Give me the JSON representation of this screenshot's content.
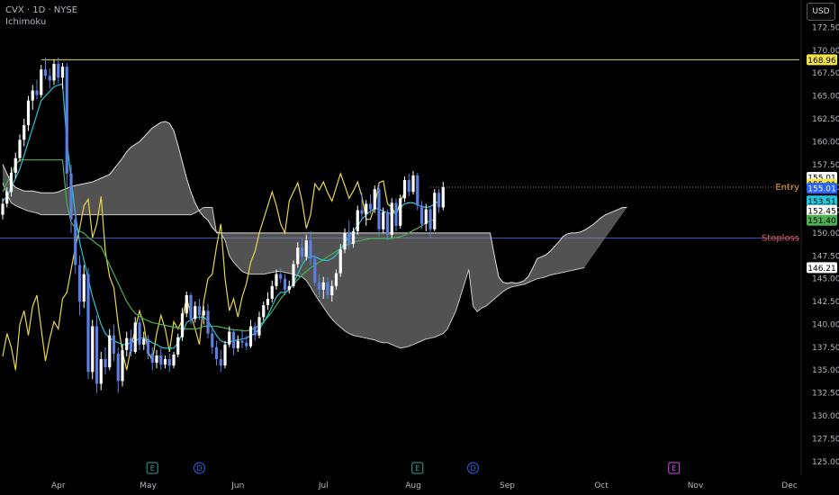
{
  "header": {
    "symbol": "CVX · 1D · NYSE",
    "indicator": "Ichimoku"
  },
  "currency_button": "USD",
  "chart_data": {
    "type": "candlestick",
    "price_axis": {
      "ticks": [
        172.5,
        170,
        167.5,
        165,
        162.5,
        160,
        157.5,
        155,
        152.5,
        150,
        147.5,
        145,
        142.5,
        140,
        137.5,
        135,
        132.5,
        130,
        127.5,
        125
      ],
      "range": [
        123.5,
        175.5
      ]
    },
    "time_axis": {
      "labels": [
        "Apr",
        "May",
        "Jun",
        "Jul",
        "Aug",
        "Sep",
        "Oct",
        "Nov",
        "Dec"
      ],
      "label_index": [
        13,
        34,
        55,
        75,
        96,
        118,
        140,
        162,
        184
      ],
      "total_slots": 197
    },
    "event_markers": [
      {
        "label": "E",
        "index": 35,
        "color": "#26a69a"
      },
      {
        "label": "D",
        "index": 46,
        "color": "#2962ff"
      },
      {
        "label": "E",
        "index": 97,
        "color": "#26a69a"
      },
      {
        "label": "D",
        "index": 110,
        "color": "#2962ff"
      },
      {
        "label": "E",
        "index": 157,
        "color": "#e040fb"
      }
    ],
    "levels": [
      {
        "name": "Entry",
        "price": 155.01,
        "color": "#f0a030",
        "style": "dotted"
      },
      {
        "name": "Stoploss",
        "price": 149.45,
        "color": "#ef5350",
        "style": "solid"
      },
      {
        "name": "",
        "price": 168.96,
        "color": "#e6d84a",
        "style": "solid"
      }
    ],
    "price_badges": [
      {
        "text": "168.96",
        "price": 168.96,
        "bg": "#f2e64a",
        "fg": "#000000"
      },
      {
        "text": "155.01",
        "price": 156.1,
        "bg": "#ffffff",
        "fg": "#000000"
      },
      {
        "text": "155.01",
        "price": 155.35,
        "bg": "#f2e64a",
        "fg": "#000000"
      },
      {
        "text": "155.01",
        "price": 154.9,
        "bg": "#2962ff",
        "fg": "#ffffff"
      },
      {
        "text": "153.51",
        "price": 153.51,
        "bg": "#26c6da",
        "fg": "#000000"
      },
      {
        "text": "152.45",
        "price": 152.45,
        "bg": "#ffffff",
        "fg": "#000000"
      },
      {
        "text": "151.40",
        "price": 151.4,
        "bg": "#4caf50",
        "fg": "#000000"
      },
      {
        "text": "146.21",
        "price": 146.21,
        "bg": "#ffffff",
        "fg": "#000000"
      }
    ],
    "candles": [
      [
        152,
        153.8,
        151.5,
        153.2
      ],
      [
        153.2,
        155,
        152.8,
        154.5
      ],
      [
        154.5,
        157.2,
        154,
        156.6
      ],
      [
        156.6,
        158.8,
        156,
        158.2
      ],
      [
        158.2,
        160.8,
        157.8,
        160.2
      ],
      [
        160.2,
        162.5,
        159.5,
        161.8
      ],
      [
        161.8,
        165,
        161.2,
        164.5
      ],
      [
        164.5,
        166.2,
        163.5,
        165.6
      ],
      [
        165.6,
        166.8,
        164.6,
        165.1
      ],
      [
        165.1,
        168.4,
        164.8,
        167.9
      ],
      [
        167.9,
        169.2,
        166.8,
        167.2
      ],
      [
        167.2,
        168,
        165.8,
        166.7
      ],
      [
        166.7,
        169,
        166.2,
        168.5
      ],
      [
        168.5,
        169.2,
        166.4,
        167
      ],
      [
        167,
        168.6,
        165.8,
        168.2
      ],
      [
        168.2,
        168.6,
        155,
        156.5
      ],
      [
        156.5,
        157.5,
        150,
        151.5
      ],
      [
        151.5,
        152.5,
        145.5,
        146.5
      ],
      [
        146.5,
        147.5,
        141,
        142.5
      ],
      [
        142.5,
        146.5,
        141.8,
        145.5
      ],
      [
        145.5,
        146.2,
        134,
        134.8
      ],
      [
        134.8,
        140.5,
        134,
        139.8
      ],
      [
        139.8,
        141,
        132.5,
        133.5
      ],
      [
        133.5,
        137,
        132.8,
        136.2
      ],
      [
        136.2,
        137.5,
        134.5,
        135.3
      ],
      [
        135.3,
        139.5,
        135,
        138.8
      ],
      [
        138.8,
        140,
        136,
        136.8
      ],
      [
        136.8,
        137.5,
        132.5,
        133.8
      ],
      [
        133.8,
        137.8,
        133.2,
        137.2
      ],
      [
        137.2,
        139.2,
        136.5,
        138.5
      ],
      [
        138.5,
        139.4,
        136.5,
        137
      ],
      [
        137,
        140.8,
        136.8,
        140.2
      ],
      [
        140.2,
        140.8,
        137.2,
        137.8
      ],
      [
        137.8,
        139.2,
        137.2,
        138.4
      ],
      [
        138.4,
        138.8,
        136.2,
        136.8
      ],
      [
        136.8,
        137.5,
        135,
        135.8
      ],
      [
        135.8,
        137.2,
        135.2,
        136.6
      ],
      [
        136.6,
        137.4,
        135,
        135.6
      ],
      [
        135.6,
        136.6,
        135.2,
        136.2
      ],
      [
        136.2,
        136.8,
        134.8,
        135.5
      ],
      [
        135.5,
        137,
        135.2,
        136.7
      ],
      [
        136.7,
        139,
        136.4,
        138.6
      ],
      [
        138.6,
        141.8,
        138.2,
        141.2
      ],
      [
        141.2,
        143.6,
        140.8,
        143.2
      ],
      [
        143.2,
        143.5,
        140,
        140.6
      ],
      [
        140.6,
        142.5,
        140.2,
        142
      ],
      [
        142,
        142.8,
        140.5,
        141
      ],
      [
        141,
        142,
        140,
        141.5
      ],
      [
        141.5,
        142.2,
        138.5,
        139
      ],
      [
        139,
        139.8,
        136.8,
        137.5
      ],
      [
        137.5,
        138.2,
        135.5,
        136.2
      ],
      [
        136.2,
        137.2,
        134.8,
        135.5
      ],
      [
        135.5,
        138.2,
        135.2,
        137.8
      ],
      [
        137.8,
        139.8,
        137.5,
        139.2
      ],
      [
        139.2,
        139.5,
        136.6,
        137.4
      ],
      [
        137.4,
        138.8,
        137,
        138.2
      ],
      [
        138.2,
        139.5,
        137.4,
        138
      ],
      [
        138,
        138.8,
        137.2,
        137.6
      ],
      [
        137.6,
        140.5,
        137.4,
        139.8
      ],
      [
        139.8,
        140.2,
        138.2,
        138.8
      ],
      [
        138.8,
        141.4,
        138.5,
        140.8
      ],
      [
        140.8,
        142.5,
        140.4,
        142.1
      ],
      [
        142.1,
        143.5,
        141.6,
        142.8
      ],
      [
        142.8,
        144.8,
        142.4,
        144.2
      ],
      [
        144.2,
        146,
        143.8,
        145.5
      ],
      [
        145.5,
        146.2,
        144.5,
        145
      ],
      [
        145,
        145.5,
        143.2,
        143.8
      ],
      [
        143.8,
        144.8,
        143.4,
        144.2
      ],
      [
        144.2,
        147,
        144,
        146.6
      ],
      [
        146.6,
        149,
        146.2,
        148.4
      ],
      [
        148.4,
        149.5,
        146.8,
        147.4
      ],
      [
        147.4,
        149.8,
        147,
        149.2
      ],
      [
        149.2,
        150.2,
        146.5,
        147.2
      ],
      [
        147.2,
        147.6,
        144.2,
        144.6
      ],
      [
        144.6,
        145.5,
        143,
        143.8
      ],
      [
        143.8,
        145.2,
        142.8,
        144.6
      ],
      [
        144.6,
        145.2,
        142.8,
        143.2
      ],
      [
        143.2,
        144.8,
        142.5,
        144.2
      ],
      [
        144.2,
        146,
        143.8,
        145.6
      ],
      [
        145.6,
        148.8,
        145.2,
        148.2
      ],
      [
        148.2,
        150.5,
        147.8,
        150
      ],
      [
        150,
        151.4,
        148.2,
        148.8
      ],
      [
        148.8,
        150.6,
        148.4,
        150.2
      ],
      [
        150.2,
        153,
        149.8,
        152.5
      ],
      [
        152.5,
        154.4,
        151.5,
        152.1
      ],
      [
        152.1,
        153.6,
        150.8,
        153.2
      ],
      [
        153.2,
        154.2,
        152.1,
        152.6
      ],
      [
        152.6,
        155.2,
        152.2,
        154.8
      ],
      [
        154.8,
        155.4,
        149.6,
        150.4
      ],
      [
        150.4,
        152.8,
        150,
        152.3
      ],
      [
        152.3,
        152.6,
        149.2,
        149.8
      ],
      [
        149.8,
        153.8,
        149.5,
        153.3
      ],
      [
        153.3,
        153.8,
        150.2,
        150.8
      ],
      [
        150.8,
        154.2,
        150.5,
        153.8
      ],
      [
        153.8,
        156.2,
        153.4,
        155.8
      ],
      [
        155.8,
        156.5,
        154,
        154.5
      ],
      [
        154.5,
        156.8,
        154.2,
        156.3
      ],
      [
        156.3,
        156.6,
        152.5,
        153
      ],
      [
        153,
        153.5,
        150.5,
        151
      ],
      [
        151,
        153.2,
        150.2,
        152.6
      ],
      [
        152.6,
        153,
        149.5,
        150.4
      ],
      [
        150.4,
        154.8,
        150.2,
        154.4
      ],
      [
        154.4,
        154.8,
        152.2,
        152.8
      ],
      [
        152.8,
        155.6,
        152.5,
        155
      ]
    ],
    "tenkan": [
      153.5,
      154,
      155,
      156,
      157,
      158.5,
      160,
      161.5,
      163,
      164.5,
      165,
      165.5,
      166,
      166.2,
      166.3,
      160,
      156,
      152,
      149,
      147,
      145,
      143,
      141.5,
      140,
      139,
      138.5,
      138.2,
      138,
      137.8,
      137.8,
      138,
      138.2,
      138.5,
      138.5,
      138.3,
      138,
      137.8,
      137.5,
      137.4,
      137.4,
      137.4,
      138,
      139,
      140.2,
      140.5,
      140.8,
      140.8,
      140.8,
      140.4,
      139.6,
      138.8,
      138.2,
      138,
      138.1,
      138.2,
      138.3,
      138.4,
      138.5,
      138.8,
      139,
      139.5,
      140.2,
      141,
      142,
      143,
      143.5,
      143.5,
      143.8,
      144.5,
      145.5,
      146.5,
      147.2,
      147.5,
      147.4,
      147.2,
      147,
      147,
      147.2,
      147.6,
      148.2,
      149,
      149.6,
      150.2,
      150.8,
      151.5,
      152,
      152.4,
      152.7,
      152.6,
      152.4,
      152.2,
      152.1,
      152.3,
      152.8,
      153.2,
      153.3,
      153.3,
      153.1,
      152.9,
      152.8,
      152.9,
      153.2,
      153.5
    ],
    "kijun": [
      154.5,
      155.5,
      156.5,
      157.5,
      158,
      158,
      158,
      158,
      158,
      158,
      158,
      158,
      158,
      158,
      158,
      153.2,
      151.2,
      150.5,
      150.2,
      150,
      149.5,
      149.2,
      148.8,
      148.5,
      147.5,
      146.5,
      145.5,
      144.5,
      143.5,
      142.5,
      141.8,
      141.2,
      140.9,
      140.6,
      140.4,
      140.2,
      140.1,
      140,
      139.9,
      139.8,
      139.7,
      139.6,
      139.5,
      139.5,
      139.5,
      139.5,
      139.6,
      139.8,
      139.8,
      139.8,
      139.8,
      139.7,
      139.6,
      139.5,
      139.4,
      139.4,
      139.3,
      139.3,
      139.4,
      139.6,
      139.9,
      140.3,
      140.8,
      141.4,
      142.1,
      142.8,
      143.4,
      143.9,
      144.4,
      144.9,
      145.4,
      145.8,
      146.2,
      146.5,
      146.8,
      147.1,
      147.4,
      147.7,
      148,
      148.3,
      148.6,
      148.8,
      149,
      149.1,
      149.2,
      149.3,
      149.4,
      149.4,
      149.4,
      149.4,
      149.4,
      149.4,
      149.5,
      149.6,
      149.8,
      150,
      150.3,
      150.5,
      150.8,
      151.1,
      151.4,
      151.4
    ],
    "chikou": [
      136.5,
      139,
      137.5,
      135,
      140,
      141.5,
      138.8,
      142,
      143.2,
      139.5,
      136,
      138.5,
      140.3,
      139.5,
      142.8,
      143.5,
      146,
      148.5,
      150.5,
      153,
      153.7,
      149.5,
      151,
      154,
      148,
      145.2,
      144,
      140,
      137,
      135,
      137.5,
      139.5,
      141.5,
      140,
      137,
      136,
      139,
      141,
      139.5,
      137,
      140.3,
      139.5,
      140.5,
      143,
      141,
      139.5,
      137.8,
      142.5,
      145,
      145.5,
      148.5,
      151,
      145,
      141.5,
      142.8,
      140.8,
      143,
      144.5,
      146.8,
      148,
      150,
      151.5,
      153,
      154.5,
      153,
      151,
      150,
      153.5,
      154.5,
      155.5,
      153.5,
      150.5,
      152,
      155.4,
      154.7,
      155.6,
      154.4,
      153.5,
      155,
      156.5,
      155.2,
      153.8,
      154.6,
      155.6,
      154,
      151.5,
      151.5,
      153,
      155.5,
      155.7,
      153.2,
      152.8,
      151.9,
      153.5,
      154.4
    ],
    "cloud_upper": [
      157.5,
      156.5,
      155.5,
      155,
      154.8,
      154.6,
      154.6,
      154.6,
      154.5,
      154.4,
      154.4,
      154.4,
      154.4,
      154.5,
      154.7,
      154.9,
      155.1,
      155.2,
      155.3,
      155.4,
      155.5,
      155.6,
      155.8,
      156,
      156.2,
      156.4,
      157,
      157.6,
      158.2,
      158.9,
      159.4,
      159.7,
      160,
      160.5,
      161,
      161.5,
      161.8,
      162.1,
      162.2,
      162,
      161.2,
      159.6,
      157.8,
      156,
      154.5,
      153.3,
      152.4,
      151.8,
      151.4,
      150.6,
      150.1,
      150,
      150,
      150,
      150,
      150,
      150,
      150,
      150,
      150,
      150,
      150,
      150,
      150,
      150,
      150,
      150,
      150,
      150,
      150,
      150,
      150,
      150,
      150,
      150,
      150,
      150,
      150,
      150,
      150,
      150,
      150,
      150,
      150,
      150,
      150,
      150,
      150,
      150,
      150,
      150,
      150,
      150,
      150,
      150,
      150,
      150,
      150,
      150,
      150,
      150,
      150,
      150,
      150,
      150,
      150,
      150,
      150,
      150,
      150,
      150,
      150,
      150,
      150,
      150,
      147.5,
      145.2,
      144.6,
      144.5,
      144.6,
      144.5,
      144.6,
      144.8,
      145.3,
      146.2,
      147.2,
      147.4,
      147.6,
      148,
      148.5,
      149,
      149.6,
      149.9,
      150,
      150,
      150.1,
      150.3,
      150.6,
      150.9,
      151.3,
      151.7,
      152,
      152.2,
      152.4,
      152.6,
      152.8,
      152.8
    ],
    "cloud_lower": [
      155.5,
      154.2,
      153.3,
      153,
      152.8,
      152.6,
      152.4,
      152.3,
      152.2,
      152,
      152,
      152,
      152,
      152,
      152,
      152,
      152,
      152,
      152,
      152,
      152,
      152,
      152,
      152,
      152,
      152,
      152,
      152,
      152,
      152,
      152,
      152,
      152,
      152,
      152,
      152,
      152,
      152,
      152,
      152,
      152,
      152,
      152,
      152,
      152,
      152.2,
      152.5,
      152.8,
      152.8,
      152.8,
      150,
      150,
      149.2,
      147.5,
      146.8,
      146.3,
      145.8,
      145.6,
      145.5,
      145.5,
      145.5,
      145.5,
      145.6,
      145.7,
      145.8,
      145.8,
      145.7,
      145.6,
      145.5,
      145.3,
      145.2,
      144.8,
      144.1,
      143.3,
      142.6,
      141.9,
      141.2,
      140.6,
      140.1,
      139.7,
      139.3,
      139,
      138.8,
      138.7,
      138.6,
      138.5,
      138.4,
      138.3,
      138.1,
      138,
      138,
      137.8,
      137.6,
      137.4,
      137.5,
      137.6,
      137.8,
      138,
      138.2,
      138.4,
      138.5,
      138.6,
      138.8,
      139,
      139.5,
      140.5,
      141.5,
      143,
      144.5,
      146,
      142,
      141.4,
      141.8,
      142,
      142.4,
      142.8,
      143.2,
      143.6,
      143.9,
      144.1,
      144.2,
      144.3,
      144.4,
      144.6,
      144.8,
      145,
      145.1,
      145.2,
      145.4,
      145.5,
      145.6,
      145.7,
      145.8,
      145.9,
      146,
      146.1,
      146.2
    ]
  }
}
